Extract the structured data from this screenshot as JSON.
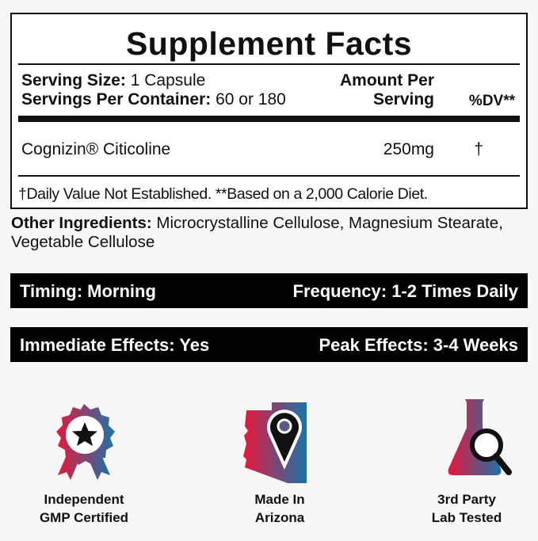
{
  "facts": {
    "title": "Supplement Facts",
    "serving_size_label": "Serving Size:",
    "serving_size_value": "1 Capsule",
    "servings_per_container_label": "Servings Per Container:",
    "servings_per_container_value": "60 or 180",
    "amount_header_1": "Amount Per",
    "amount_header_2": "Serving",
    "dv_header": "%DV**",
    "ingredient": {
      "name": "Cognizin® Citicoline",
      "amount": "250mg",
      "dv": "†"
    },
    "footnote": "†Daily Value Not Established. **Based on a 2,000 Calorie Diet."
  },
  "other_ingredients": {
    "label": "Other Ingredients:",
    "value": "Microcrystalline Cellulose,  Magnesium Stearate, Vegetable Cellulose"
  },
  "bars": [
    {
      "left": "Timing: Morning",
      "right": "Frequency: 1-2 Times Daily"
    },
    {
      "left": "Immediate Effects: Yes",
      "right": "Peak Effects: 3-4 Weeks"
    }
  ],
  "badges": [
    {
      "icon": "award-ribbon-icon",
      "line1": "Independent",
      "line2": "GMP Certified"
    },
    {
      "icon": "arizona-map-pin-icon",
      "line1": "Made In",
      "line2": "Arizona"
    },
    {
      "icon": "lab-flask-magnifier-icon",
      "line1": "3rd Party",
      "line2": "Lab Tested"
    }
  ],
  "colors": {
    "gradient_start": "#e8173a",
    "gradient_end": "#1a74a8",
    "text": "#111111",
    "background": "#f7f7f7"
  }
}
